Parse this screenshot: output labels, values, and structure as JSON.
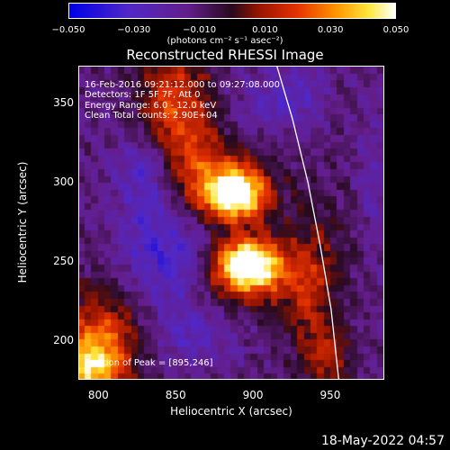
{
  "chart_data": {
    "type": "heatmap",
    "title": "Reconstructed RHESSI Image",
    "xlabel": "Heliocentric X (arcsec)",
    "ylabel": "Heliocentric Y (arcsec)",
    "xlim": [
      787,
      985
    ],
    "ylim": [
      175,
      373
    ],
    "x_ticks": [
      "800",
      "850",
      "900",
      "950"
    ],
    "y_ticks": [
      "200",
      "250",
      "300",
      "350"
    ],
    "colorbar": {
      "ticks": [
        "−0.050",
        "−0.030",
        "−0.010",
        "0.010",
        "0.030",
        "0.050"
      ],
      "units": "(photons cm⁻² s⁻¹ asec⁻²)",
      "range": [
        -0.05,
        0.05
      ]
    },
    "sources": [
      {
        "x": 887,
        "y": 290,
        "peak": 0.05
      },
      {
        "x": 895,
        "y": 246,
        "peak": 0.05
      }
    ],
    "peak_position": [
      895,
      246
    ],
    "limb_curve": [
      [
        915,
        373
      ],
      [
        925,
        340
      ],
      [
        935,
        300
      ],
      [
        943,
        260
      ],
      [
        950,
        220
      ],
      [
        955,
        175
      ]
    ]
  },
  "annotations": {
    "time_range": "16-Feb-2016 09:21:12.000 to 09:27:08.000",
    "detectors": "Detectors: 1F 5F 7F, Att 0",
    "energy": "Energy Range: 6.0 - 12.0 keV",
    "clean": "Clean     Total counts: 2.90E+04",
    "peak": "Position of Peak = [895,246]"
  },
  "footer": {
    "timestamp": "18-May-2022 04:57"
  }
}
